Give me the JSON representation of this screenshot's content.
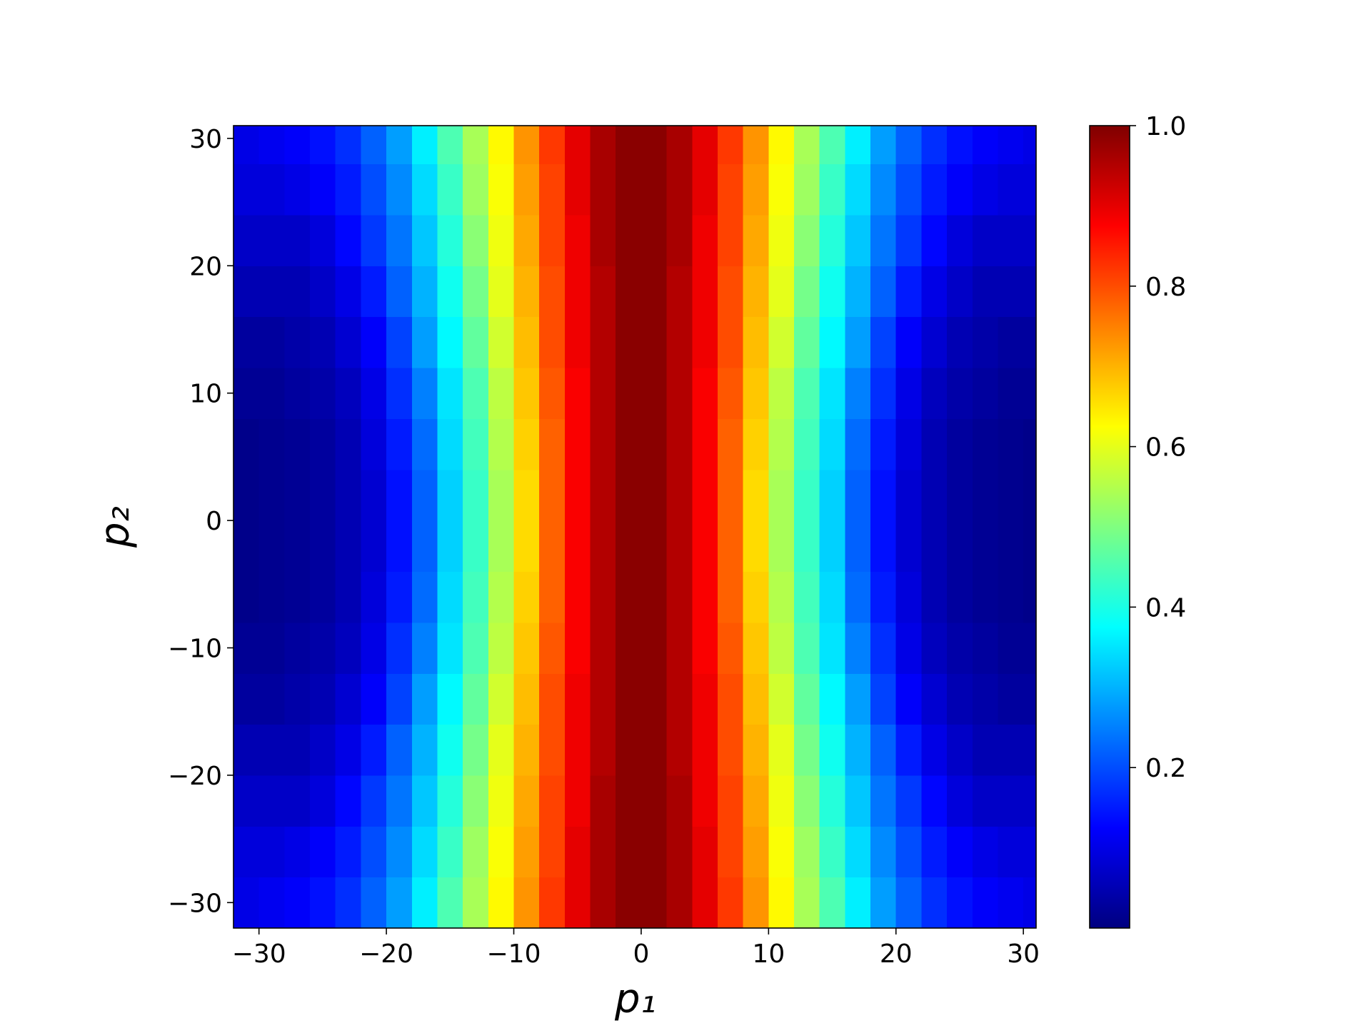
{
  "chart_data": {
    "type": "heatmap",
    "xlabel": "p₁",
    "ylabel": "p₂",
    "colormap": "jet",
    "clim": [
      0,
      1
    ],
    "xlim": [
      -32,
      31
    ],
    "ylim": [
      -32,
      31
    ],
    "xticks": [
      {
        "value": -30,
        "label": "−30"
      },
      {
        "value": -20,
        "label": "−20"
      },
      {
        "value": -10,
        "label": "−10"
      },
      0,
      10,
      20,
      30
    ],
    "yticks": [
      {
        "value": -30,
        "label": "−30"
      },
      {
        "value": -20,
        "label": "−20"
      },
      {
        "value": -10,
        "label": "−10"
      },
      0,
      10,
      20,
      30
    ],
    "cticks": [
      0.2,
      0.4,
      0.6,
      0.8,
      {
        "value": 1,
        "label": "1.0"
      }
    ],
    "x": [
      -31,
      -29,
      -27,
      -25,
      -23,
      -21,
      -19,
      -17,
      -15,
      -13,
      -11,
      -9,
      -7,
      -5,
      -3,
      -1,
      1,
      3,
      5,
      7,
      9,
      11,
      13,
      15,
      17,
      19,
      21,
      23,
      25,
      27,
      29,
      31
    ],
    "y": [
      -30,
      -26,
      -22,
      -18,
      -14,
      -10,
      -6,
      -2,
      2,
      6,
      10,
      14,
      18,
      22,
      26,
      30
    ],
    "z": [
      [
        0.1,
        0.11,
        0.12,
        0.14,
        0.17,
        0.22,
        0.28,
        0.36,
        0.45,
        0.54,
        0.63,
        0.73,
        0.82,
        0.9,
        0.96,
        0.99,
        0.99,
        0.96,
        0.9,
        0.82,
        0.73,
        0.63,
        0.54,
        0.45,
        0.36,
        0.28,
        0.22,
        0.17,
        0.14,
        0.12,
        0.11,
        0.1
      ],
      [
        0.09,
        0.09,
        0.1,
        0.12,
        0.15,
        0.2,
        0.26,
        0.34,
        0.43,
        0.53,
        0.62,
        0.72,
        0.81,
        0.9,
        0.96,
        0.99,
        0.99,
        0.96,
        0.9,
        0.81,
        0.72,
        0.62,
        0.53,
        0.43,
        0.34,
        0.26,
        0.2,
        0.15,
        0.12,
        0.1,
        0.09,
        0.09
      ],
      [
        0.07,
        0.07,
        0.07,
        0.09,
        0.13,
        0.18,
        0.24,
        0.32,
        0.41,
        0.51,
        0.61,
        0.71,
        0.81,
        0.89,
        0.96,
        0.99,
        0.99,
        0.96,
        0.89,
        0.81,
        0.71,
        0.61,
        0.51,
        0.41,
        0.32,
        0.24,
        0.18,
        0.13,
        0.09,
        0.07,
        0.07,
        0.07
      ],
      [
        0.05,
        0.05,
        0.05,
        0.07,
        0.1,
        0.15,
        0.22,
        0.3,
        0.39,
        0.49,
        0.6,
        0.7,
        0.8,
        0.89,
        0.95,
        0.99,
        0.99,
        0.95,
        0.89,
        0.8,
        0.7,
        0.6,
        0.49,
        0.39,
        0.3,
        0.22,
        0.15,
        0.1,
        0.07,
        0.05,
        0.05,
        0.05
      ],
      [
        0.03,
        0.03,
        0.04,
        0.05,
        0.08,
        0.12,
        0.19,
        0.28,
        0.37,
        0.47,
        0.58,
        0.69,
        0.8,
        0.89,
        0.95,
        0.99,
        0.99,
        0.95,
        0.89,
        0.8,
        0.69,
        0.58,
        0.47,
        0.37,
        0.28,
        0.19,
        0.12,
        0.08,
        0.05,
        0.04,
        0.03,
        0.03
      ],
      [
        0.02,
        0.02,
        0.03,
        0.04,
        0.06,
        0.1,
        0.17,
        0.25,
        0.35,
        0.45,
        0.56,
        0.68,
        0.79,
        0.88,
        0.95,
        0.99,
        0.99,
        0.95,
        0.88,
        0.79,
        0.68,
        0.56,
        0.45,
        0.35,
        0.25,
        0.17,
        0.1,
        0.06,
        0.04,
        0.03,
        0.02,
        0.02
      ],
      [
        0.01,
        0.015,
        0.02,
        0.03,
        0.05,
        0.09,
        0.15,
        0.23,
        0.34,
        0.44,
        0.55,
        0.67,
        0.78,
        0.88,
        0.95,
        0.99,
        0.99,
        0.95,
        0.88,
        0.78,
        0.67,
        0.55,
        0.44,
        0.34,
        0.23,
        0.15,
        0.09,
        0.05,
        0.03,
        0.02,
        0.015,
        0.01
      ],
      [
        0.01,
        0.015,
        0.02,
        0.03,
        0.05,
        0.08,
        0.14,
        0.22,
        0.33,
        0.43,
        0.54,
        0.66,
        0.78,
        0.88,
        0.95,
        0.99,
        0.99,
        0.95,
        0.88,
        0.78,
        0.66,
        0.54,
        0.43,
        0.33,
        0.22,
        0.14,
        0.08,
        0.05,
        0.03,
        0.02,
        0.015,
        0.01
      ],
      [
        0.01,
        0.015,
        0.02,
        0.03,
        0.05,
        0.08,
        0.14,
        0.22,
        0.33,
        0.43,
        0.54,
        0.66,
        0.78,
        0.88,
        0.95,
        0.99,
        0.99,
        0.95,
        0.88,
        0.78,
        0.66,
        0.54,
        0.43,
        0.33,
        0.22,
        0.14,
        0.08,
        0.05,
        0.03,
        0.02,
        0.015,
        0.01
      ],
      [
        0.01,
        0.015,
        0.02,
        0.03,
        0.05,
        0.09,
        0.15,
        0.23,
        0.34,
        0.44,
        0.55,
        0.67,
        0.78,
        0.88,
        0.95,
        0.99,
        0.99,
        0.95,
        0.88,
        0.78,
        0.67,
        0.55,
        0.44,
        0.34,
        0.23,
        0.15,
        0.09,
        0.05,
        0.03,
        0.02,
        0.015,
        0.01
      ],
      [
        0.02,
        0.02,
        0.03,
        0.04,
        0.06,
        0.1,
        0.17,
        0.25,
        0.35,
        0.45,
        0.56,
        0.68,
        0.79,
        0.88,
        0.95,
        0.99,
        0.99,
        0.95,
        0.88,
        0.79,
        0.68,
        0.56,
        0.45,
        0.35,
        0.25,
        0.17,
        0.1,
        0.06,
        0.04,
        0.03,
        0.02,
        0.02
      ],
      [
        0.03,
        0.03,
        0.04,
        0.05,
        0.08,
        0.12,
        0.19,
        0.28,
        0.37,
        0.47,
        0.58,
        0.69,
        0.8,
        0.89,
        0.95,
        0.99,
        0.99,
        0.95,
        0.89,
        0.8,
        0.69,
        0.58,
        0.47,
        0.37,
        0.28,
        0.19,
        0.12,
        0.08,
        0.05,
        0.04,
        0.03,
        0.03
      ],
      [
        0.05,
        0.05,
        0.05,
        0.07,
        0.1,
        0.15,
        0.22,
        0.3,
        0.39,
        0.49,
        0.6,
        0.7,
        0.8,
        0.89,
        0.95,
        0.99,
        0.99,
        0.95,
        0.89,
        0.8,
        0.7,
        0.6,
        0.49,
        0.39,
        0.3,
        0.22,
        0.15,
        0.1,
        0.07,
        0.05,
        0.05,
        0.05
      ],
      [
        0.07,
        0.07,
        0.07,
        0.09,
        0.13,
        0.18,
        0.24,
        0.32,
        0.41,
        0.51,
        0.61,
        0.71,
        0.81,
        0.89,
        0.96,
        0.99,
        0.99,
        0.96,
        0.89,
        0.81,
        0.71,
        0.61,
        0.51,
        0.41,
        0.32,
        0.24,
        0.18,
        0.13,
        0.09,
        0.07,
        0.07,
        0.07
      ],
      [
        0.09,
        0.09,
        0.1,
        0.12,
        0.15,
        0.2,
        0.26,
        0.34,
        0.43,
        0.53,
        0.62,
        0.72,
        0.81,
        0.9,
        0.96,
        0.99,
        0.99,
        0.96,
        0.9,
        0.81,
        0.72,
        0.62,
        0.53,
        0.43,
        0.34,
        0.26,
        0.2,
        0.15,
        0.12,
        0.1,
        0.09,
        0.09
      ],
      [
        0.1,
        0.11,
        0.12,
        0.14,
        0.17,
        0.22,
        0.28,
        0.36,
        0.45,
        0.54,
        0.63,
        0.73,
        0.82,
        0.9,
        0.96,
        0.99,
        0.99,
        0.96,
        0.9,
        0.82,
        0.73,
        0.63,
        0.54,
        0.45,
        0.36,
        0.28,
        0.22,
        0.17,
        0.14,
        0.12,
        0.11,
        0.1
      ]
    ]
  }
}
